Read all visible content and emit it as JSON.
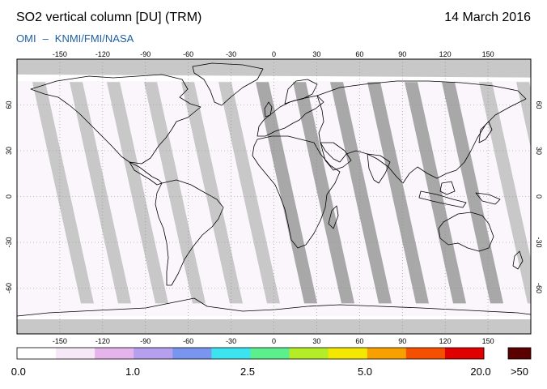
{
  "header": {
    "title": "SO2 vertical column [DU] (TRM)",
    "date": "14 March 2016",
    "credit_left": "OMI",
    "credit_sep": "–",
    "credit_right": "KNMI/FMI/NASA"
  },
  "map": {
    "projection": "equirectangular",
    "lon_ticks": [
      "-150",
      "-120",
      "-90",
      "-60",
      "-30",
      "0",
      "30",
      "60",
      "90",
      "120",
      "150"
    ],
    "lat_ticks": [
      "60",
      "30",
      "0",
      "-30",
      "-60"
    ],
    "background_color": "#ffffff",
    "no_data_color": "#c8c8c8",
    "polar_color": "#c8c8c8",
    "coastline_color": "#000000",
    "grid_color": "#888888"
  },
  "colorbar": {
    "labels": [
      "0.0",
      "1.0",
      "2.5",
      "5.0",
      "20.0",
      ">50"
    ],
    "colors": [
      "#ffffff",
      "#f6e8f6",
      "#e6b4ec",
      "#b4a0ee",
      "#7896f0",
      "#3ce4f0",
      "#5cf08c",
      "#b4ec28",
      "#f4e800",
      "#f8a000",
      "#f45000",
      "#e00000"
    ],
    "overflow_color": "#5a0000"
  }
}
